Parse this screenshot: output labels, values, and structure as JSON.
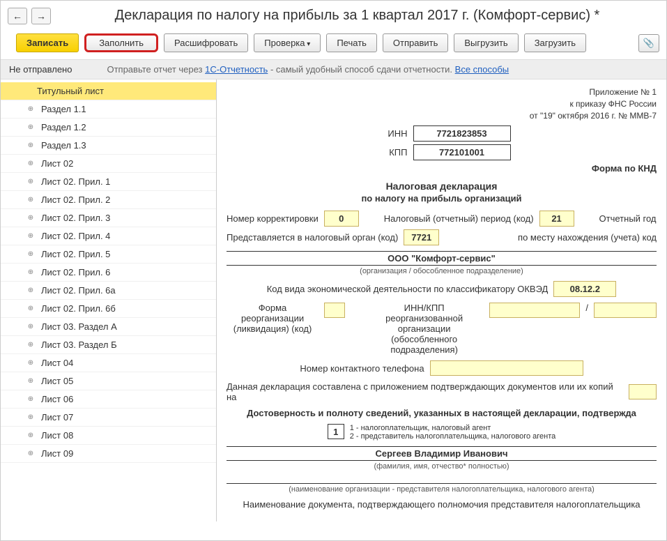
{
  "title": "Декларация по налогу на прибыль за 1 квартал 2017 г. (Комфорт-сервис) *",
  "toolbar": {
    "record": "Записать",
    "fill": "Заполнить",
    "decode": "Расшифровать",
    "check": "Проверка",
    "print": "Печать",
    "send": "Отправить",
    "export": "Выгрузить",
    "import": "Загрузить"
  },
  "status": {
    "label": "Не отправлено",
    "hint_prefix": "Отправьте отчет через ",
    "hint_link1": "1С-Отчетность",
    "hint_middle": " - самый удобный способ сдачи отчетности. ",
    "hint_link2": "Все способы"
  },
  "sidebar": {
    "items": [
      "Титульный лист",
      "Раздел 1.1",
      "Раздел 1.2",
      "Раздел 1.3",
      "Лист 02",
      "Лист 02. Прил. 1",
      "Лист 02. Прил. 2",
      "Лист 02. Прил. 3",
      "Лист 02. Прил. 4",
      "Лист 02. Прил. 5",
      "Лист 02. Прил. 6",
      "Лист 02. Прил. 6а",
      "Лист 02. Прил. 6б",
      "Лист 03. Раздел А",
      "Лист 03. Раздел Б",
      "Лист 04",
      "Лист 05",
      "Лист 06",
      "Лист 07",
      "Лист 08",
      "Лист 09"
    ],
    "active_index": 0
  },
  "form": {
    "appendix_line1": "Приложение № 1",
    "appendix_line2": "к приказу ФНС России",
    "appendix_line3": "от \"19\" октября 2016 г. № ММВ-7",
    "inn_label": "ИНН",
    "inn": "7721823853",
    "kpp_label": "КПП",
    "kpp": "772101001",
    "knd_label": "Форма по КНД",
    "doc_title": "Налоговая декларация",
    "doc_subtitle": "по налогу на прибыль организаций",
    "corr_label": "Номер корректировки",
    "corr": "0",
    "period_label": "Налоговый (отчетный) период (код)",
    "period": "21",
    "year_label": "Отчетный год",
    "submit_org_label": "Представляется в налоговый орган (код)",
    "submit_org": "7721",
    "location_label": "по месту нахождения (учета) код",
    "org_name": "ООО \"Комфорт-сервис\"",
    "org_sub": "(организация / обособленное подразделение)",
    "okved_label": "Код вида экономической деятельности по классификатору ОКВЭД",
    "okved": "08.12.2",
    "reorg_label1": "Форма реорганизации",
    "reorg_label2": "(ликвидация) (код)",
    "reorg_inn_label1": "ИНН/КПП реорганизованной",
    "reorg_inn_label2": "организации (обособленного",
    "reorg_inn_label3": "подразделения)",
    "phone_label": "Номер контактного телефона",
    "attach_label": "Данная декларация составлена с приложением подтверждающих документов или их копий на",
    "confirm_title": "Достоверность и полноту сведений, указанных в настоящей декларации, подтвержда",
    "confirm_code": "1",
    "confirm_legend1": "1 - налогоплательщик, налоговый агент",
    "confirm_legend2": "2 - представитель налогоплательщика, налогового агента",
    "fio": "Сергеев Владимир Иванович",
    "fio_sub": "(фамилия, имя, отчество* полностью)",
    "org_rep_sub": "(наименование организации - представителя налогоплательщика, налогового агента)",
    "doc_confirm_label": "Наименование документа, подтверждающего полномочия представителя налогоплательщика"
  }
}
